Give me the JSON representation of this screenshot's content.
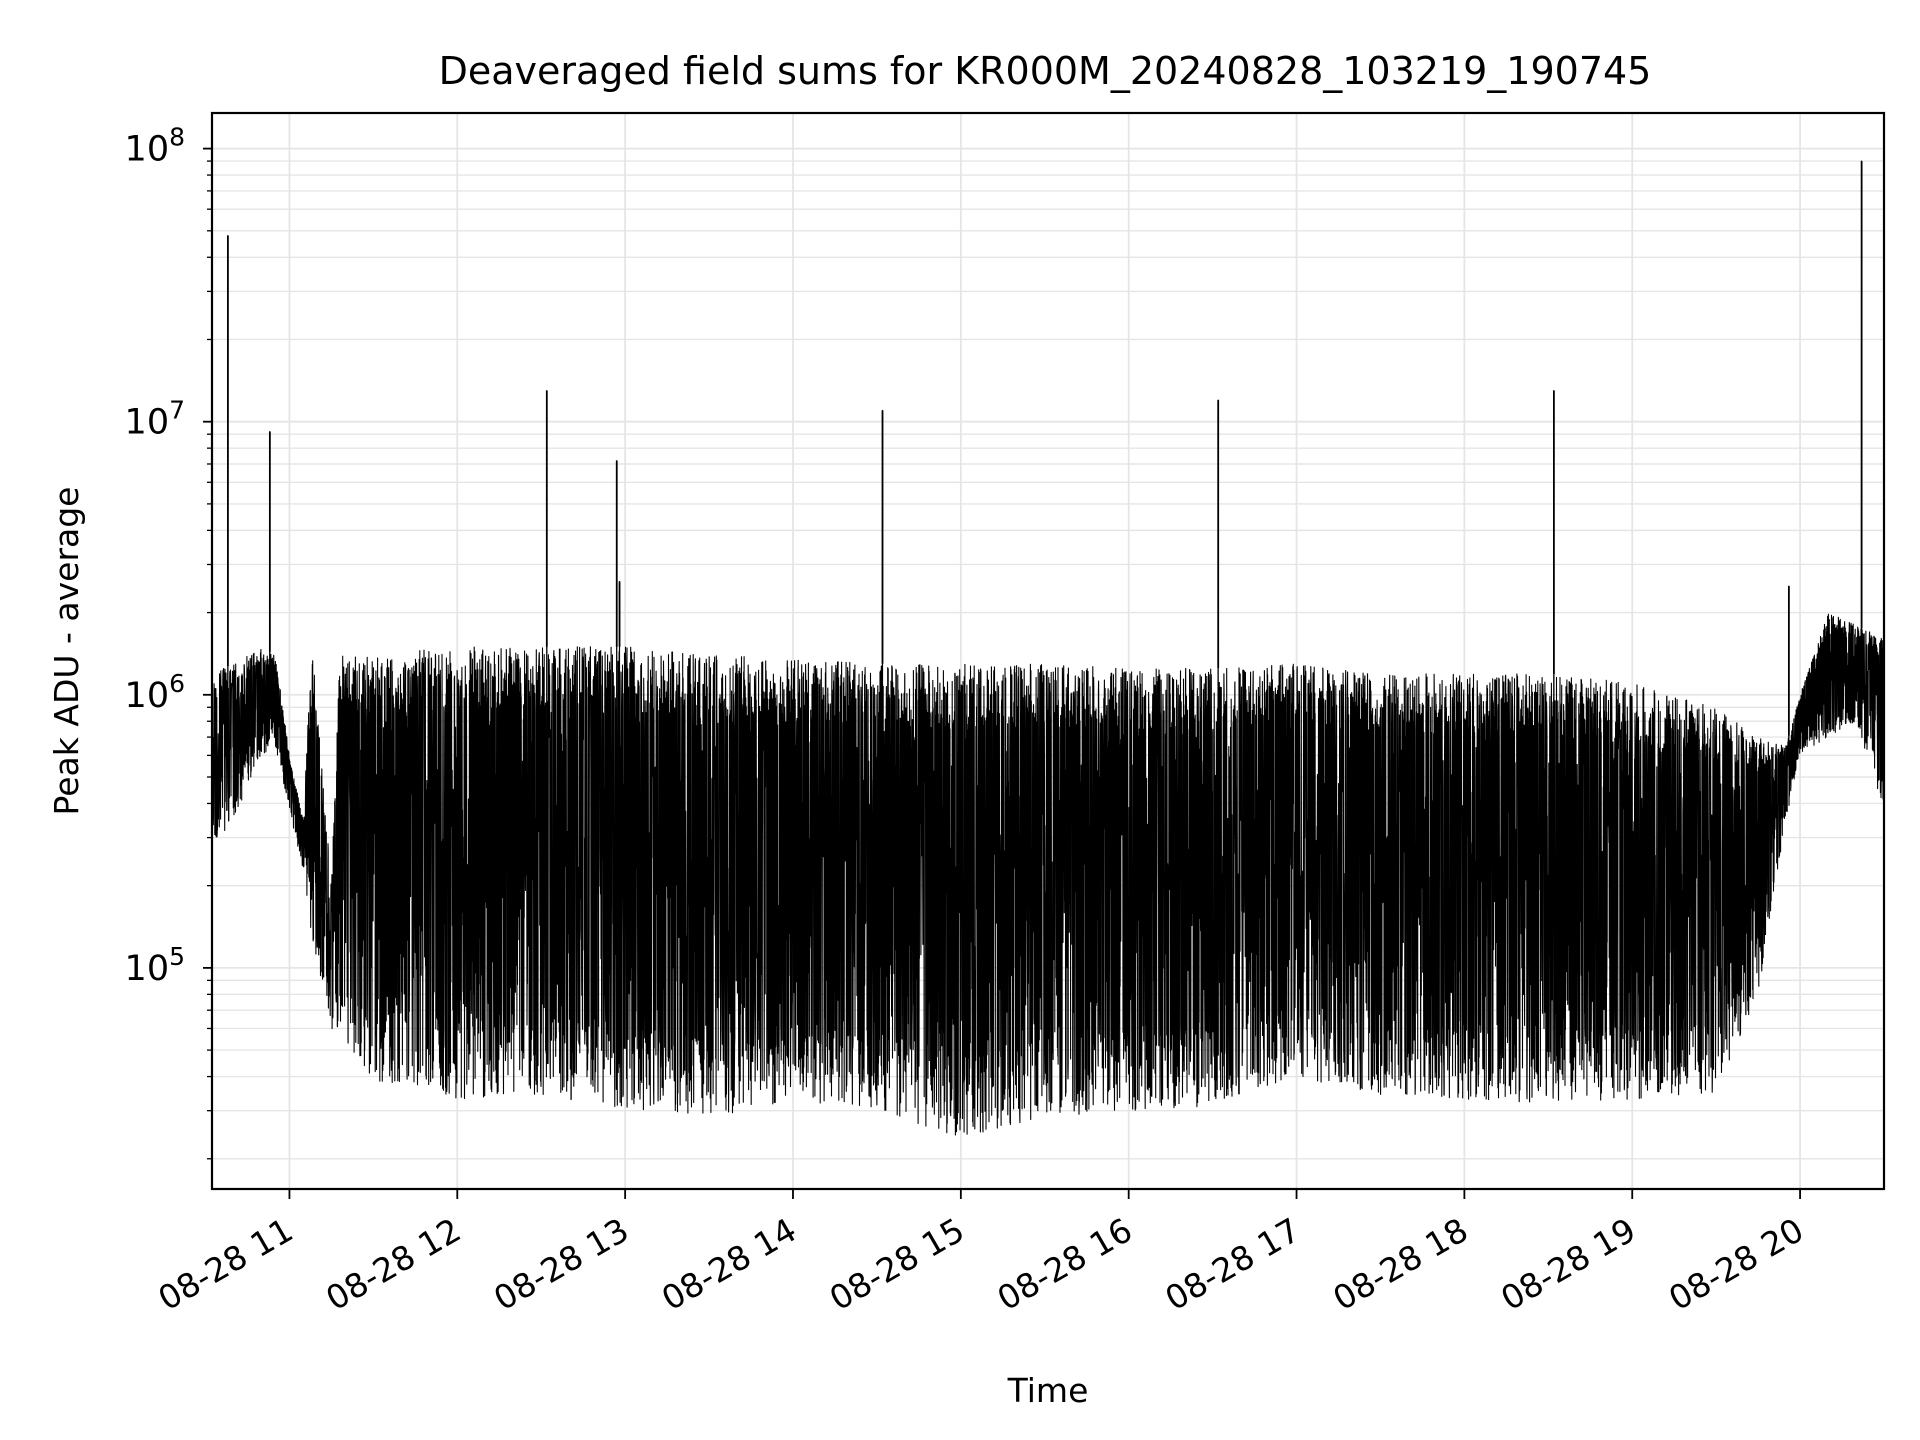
{
  "chart_data": {
    "type": "line",
    "title": "Deaveraged field sums for KR000M_20240828_103219_190745",
    "xlabel": "Time",
    "ylabel": "Peak ADU - average",
    "yscale": "log",
    "ylim": [
      15500,
      135000000
    ],
    "xlim": [
      "2024-08-28 10:32:19",
      "2024-08-28 20:30:00"
    ],
    "grid": true,
    "x_ticks": [
      {
        "t": "2024-08-28 11:00",
        "label": "08-28 11"
      },
      {
        "t": "2024-08-28 12:00",
        "label": "08-28 12"
      },
      {
        "t": "2024-08-28 13:00",
        "label": "08-28 13"
      },
      {
        "t": "2024-08-28 14:00",
        "label": "08-28 14"
      },
      {
        "t": "2024-08-28 15:00",
        "label": "08-28 15"
      },
      {
        "t": "2024-08-28 16:00",
        "label": "08-28 16"
      },
      {
        "t": "2024-08-28 17:00",
        "label": "08-28 17"
      },
      {
        "t": "2024-08-28 18:00",
        "label": "08-28 18"
      },
      {
        "t": "2024-08-28 19:00",
        "label": "08-28 19"
      },
      {
        "t": "2024-08-28 20:00",
        "label": "08-28 20"
      }
    ],
    "y_ticks": [
      {
        "value": 100000,
        "base": "10",
        "exp": "5"
      },
      {
        "value": 1000000,
        "base": "10",
        "exp": "6"
      },
      {
        "value": 10000000,
        "base": "10",
        "exp": "7"
      },
      {
        "value": 100000000,
        "base": "10",
        "exp": "8"
      }
    ],
    "line_color": "#000000",
    "grid_color": "#e5e5e5",
    "series": [
      {
        "envelope": [
          {
            "x": "2024-08-28 10:32",
            "upper": 1200000,
            "lower": 270000
          },
          {
            "x": "2024-08-28 10:40",
            "upper": 1300000,
            "lower": 350000
          },
          {
            "x": "2024-08-28 10:50",
            "upper": 1500000,
            "lower": 600000
          },
          {
            "x": "2024-08-28 10:55",
            "upper": 1400000,
            "lower": 650000
          },
          {
            "x": "2024-08-28 11:00",
            "upper": 600000,
            "lower": 380000
          },
          {
            "x": "2024-08-28 11:05",
            "upper": 350000,
            "lower": 220000
          },
          {
            "x": "2024-08-28 11:08",
            "upper": 1600000,
            "lower": 130000
          },
          {
            "x": "2024-08-28 11:15",
            "upper": 200000,
            "lower": 60000
          },
          {
            "x": "2024-08-28 11:18",
            "upper": 1400000,
            "lower": 50000
          },
          {
            "x": "2024-08-28 11:30",
            "upper": 1400000,
            "lower": 38000
          },
          {
            "x": "2024-08-28 12:00",
            "upper": 1500000,
            "lower": 33000
          },
          {
            "x": "2024-08-28 12:30",
            "upper": 1500000,
            "lower": 34000
          },
          {
            "x": "2024-08-28 13:00",
            "upper": 1500000,
            "lower": 30000
          },
          {
            "x": "2024-08-28 13:30",
            "upper": 1400000,
            "lower": 28000
          },
          {
            "x": "2024-08-28 14:00",
            "upper": 1350000,
            "lower": 33000
          },
          {
            "x": "2024-08-28 14:30",
            "upper": 1300000,
            "lower": 30000
          },
          {
            "x": "2024-08-28 15:00",
            "upper": 1300000,
            "lower": 24000
          },
          {
            "x": "2024-08-28 15:30",
            "upper": 1300000,
            "lower": 28000
          },
          {
            "x": "2024-08-28 16:00",
            "upper": 1250000,
            "lower": 30000
          },
          {
            "x": "2024-08-28 16:30",
            "upper": 1250000,
            "lower": 31000
          },
          {
            "x": "2024-08-28 17:00",
            "upper": 1300000,
            "lower": 40000
          },
          {
            "x": "2024-08-28 17:30",
            "upper": 1200000,
            "lower": 34000
          },
          {
            "x": "2024-08-28 18:00",
            "upper": 1200000,
            "lower": 33000
          },
          {
            "x": "2024-08-28 18:30",
            "upper": 1200000,
            "lower": 32000
          },
          {
            "x": "2024-08-28 19:00",
            "upper": 1100000,
            "lower": 33000
          },
          {
            "x": "2024-08-28 19:30",
            "upper": 900000,
            "lower": 35000
          },
          {
            "x": "2024-08-28 19:45",
            "upper": 700000,
            "lower": 80000
          },
          {
            "x": "2024-08-28 19:55",
            "upper": 650000,
            "lower": 350000
          },
          {
            "x": "2024-08-28 20:00",
            "upper": 1000000,
            "lower": 600000
          },
          {
            "x": "2024-08-28 20:10",
            "upper": 2000000,
            "lower": 700000
          },
          {
            "x": "2024-08-28 20:20",
            "upper": 1800000,
            "lower": 800000
          },
          {
            "x": "2024-08-28 20:30",
            "upper": 1600000,
            "lower": 380000
          }
        ],
        "spikes": [
          {
            "x": "2024-08-28 10:38",
            "value": 48000000
          },
          {
            "x": "2024-08-28 10:53",
            "value": 9200000
          },
          {
            "x": "2024-08-28 12:32",
            "value": 13000000
          },
          {
            "x": "2024-08-28 12:57",
            "value": 7200000
          },
          {
            "x": "2024-08-28 12:58",
            "value": 2600000
          },
          {
            "x": "2024-08-28 14:32",
            "value": 11000000
          },
          {
            "x": "2024-08-28 16:32",
            "value": 12000000
          },
          {
            "x": "2024-08-28 18:32",
            "value": 13000000
          },
          {
            "x": "2024-08-28 19:56",
            "value": 2500000
          },
          {
            "x": "2024-08-28 20:22",
            "value": 90000000
          }
        ]
      }
    ]
  }
}
